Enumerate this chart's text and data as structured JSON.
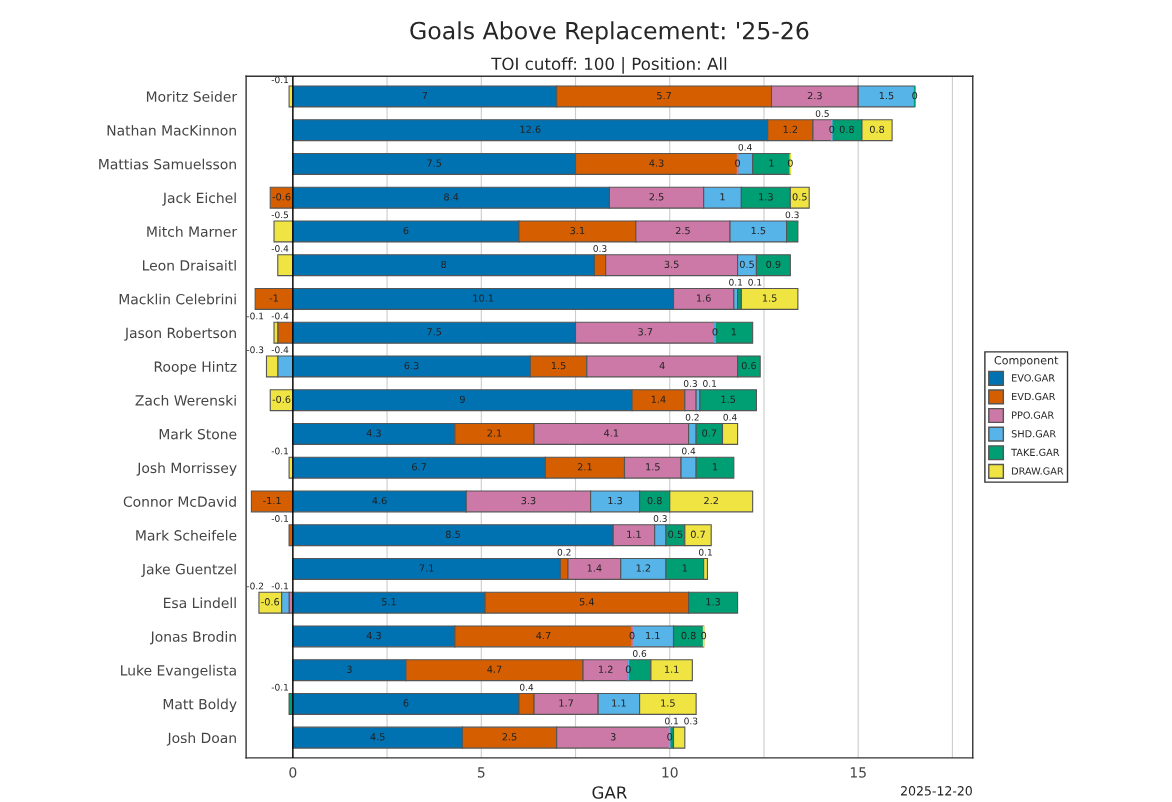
{
  "chart_data": {
    "type": "bar",
    "orientation": "horizontal",
    "stacked": true,
    "title": "Goals Above Replacement: '25-26",
    "subtitle": "TOI cutoff: 100 | Position: All",
    "xlabel": "GAR",
    "legend_title": "Component",
    "legend": "right",
    "grid": "x",
    "categories": [
      "Moritz Seider",
      "Nathan MacKinnon",
      "Mattias Samuelsson",
      "Jack Eichel",
      "Mitch Marner",
      "Leon Draisaitl",
      "Macklin Celebrini",
      "Jason Robertson",
      "Roope Hintz",
      "Zach Werenski",
      "Mark Stone",
      "Josh Morrissey",
      "Connor McDavid",
      "Mark Scheifele",
      "Jake Guentzel",
      "Esa Lindell",
      "Jonas Brodin",
      "Luke Evangelista",
      "Matt Boldy",
      "Josh Doan"
    ],
    "series": [
      {
        "name": "EVO.GAR",
        "color": "#0072b2",
        "values": [
          7,
          12.6,
          7.5,
          8.4,
          6,
          8,
          10.1,
          7.5,
          6.3,
          9,
          4.3,
          6.7,
          4.6,
          8.5,
          7.1,
          5.1,
          4.3,
          3,
          6,
          4.5
        ],
        "value_labels": [
          "7",
          "12.6",
          "7.5",
          "8.4",
          "6",
          "8",
          "10.1",
          "7.5",
          "6.3",
          "9",
          "4.3",
          "6.7",
          "4.6",
          "8.5",
          "7.1",
          "5.1",
          "4.3",
          "3",
          "6",
          "4.5"
        ]
      },
      {
        "name": "EVD.GAR",
        "color": "#d55e00",
        "values": [
          5.7,
          1.2,
          4.3,
          -0.6,
          3.1,
          0.3,
          -1,
          -0.4,
          1.5,
          1.4,
          2.1,
          2.1,
          -1.1,
          -0.1,
          0.2,
          5.4,
          4.7,
          4.7,
          0.4,
          2.5
        ],
        "value_labels": [
          "5.7",
          "1.2",
          "4.3",
          "-0.6",
          "3.1",
          "0.3",
          "-1",
          "-0.4",
          "1.5",
          "1.4",
          "2.1",
          "2.1",
          "-1.1",
          "-0.1",
          "0.2",
          "5.4",
          "4.7",
          "4.7",
          "0.4",
          "2.5"
        ]
      },
      {
        "name": "PPO.GAR",
        "color": "#cc79a7",
        "values": [
          2.3,
          0.5,
          0,
          2.5,
          2.5,
          3.5,
          1.6,
          3.7,
          4,
          0.3,
          4.1,
          1.5,
          3.3,
          1.1,
          1.4,
          -0.1,
          0,
          1.2,
          1.7,
          3
        ],
        "value_labels": [
          "2.3",
          "0.5",
          "0",
          "2.5",
          "2.5",
          "3.5",
          "1.6",
          "3.7",
          "4",
          "0.3",
          "4.1",
          "1.5",
          "3.3",
          "1.1",
          "1.4",
          "-0.1",
          "0",
          "1.2",
          "1.7",
          "3"
        ]
      },
      {
        "name": "SHD.GAR",
        "color": "#56b4e9",
        "values": [
          1.5,
          0,
          0.4,
          1,
          1.5,
          0.5,
          0.1,
          0,
          -0.4,
          0.1,
          0.2,
          0.4,
          1.3,
          0.3,
          1.2,
          -0.2,
          1.1,
          0,
          1.1,
          0
        ],
        "value_labels": [
          "1.5",
          "0",
          "0.4",
          "1",
          "1.5",
          "0.5",
          "0.1",
          "0",
          "-0.4",
          "0.1",
          "0.2",
          "0.4",
          "1.3",
          "0.3",
          "1.2",
          "-0.2",
          "1.1",
          "0",
          "1.1",
          "0"
        ]
      },
      {
        "name": "TAKE.GAR",
        "color": "#009e73",
        "values": [
          0,
          0.8,
          1,
          1.3,
          0.3,
          0.9,
          0.1,
          1,
          0.6,
          1.5,
          0.7,
          1,
          0.8,
          0.5,
          1,
          1.3,
          0.8,
          0.6,
          -0.1,
          0.1
        ],
        "value_labels": [
          "0",
          "0.8",
          "1",
          "1.3",
          "0.3",
          "0.9",
          "0.1",
          "1",
          "0.6",
          "1.5",
          "0.7",
          "1",
          "0.8",
          "0.5",
          "1",
          "1.3",
          "0.8",
          "0.6",
          "-0.1",
          "0.1"
        ]
      },
      {
        "name": "DRAW.GAR",
        "color": "#f0e442",
        "values": [
          -0.1,
          0.8,
          0,
          0.5,
          -0.5,
          -0.4,
          1.5,
          -0.1,
          -0.3,
          -0.6,
          0.4,
          -0.1,
          2.2,
          0.7,
          0.1,
          -0.6,
          0,
          1.1,
          1.5,
          0.3
        ],
        "value_labels": [
          "-0.1",
          "0.8",
          "0",
          "0.5",
          "-0.5",
          "-0.4",
          "1.5",
          "-0.1",
          "-0.3",
          "-0.6",
          "0.4",
          "-0.1",
          "2.2",
          "0.7",
          "0.1",
          "-0.6",
          "0",
          "1.1",
          "1.5",
          "0.3"
        ]
      }
    ],
    "xlim": [
      -1.24,
      18.04
    ],
    "xticks": [
      0,
      {
        "value": 2.5,
        "label": null
      },
      5,
      {
        "value": 7.5,
        "label": null
      },
      10,
      {
        "value": 12.5,
        "label": null
      },
      15,
      {
        "value": 17.5,
        "label": null
      }
    ],
    "annotations": [
      "2025-12-20"
    ]
  }
}
